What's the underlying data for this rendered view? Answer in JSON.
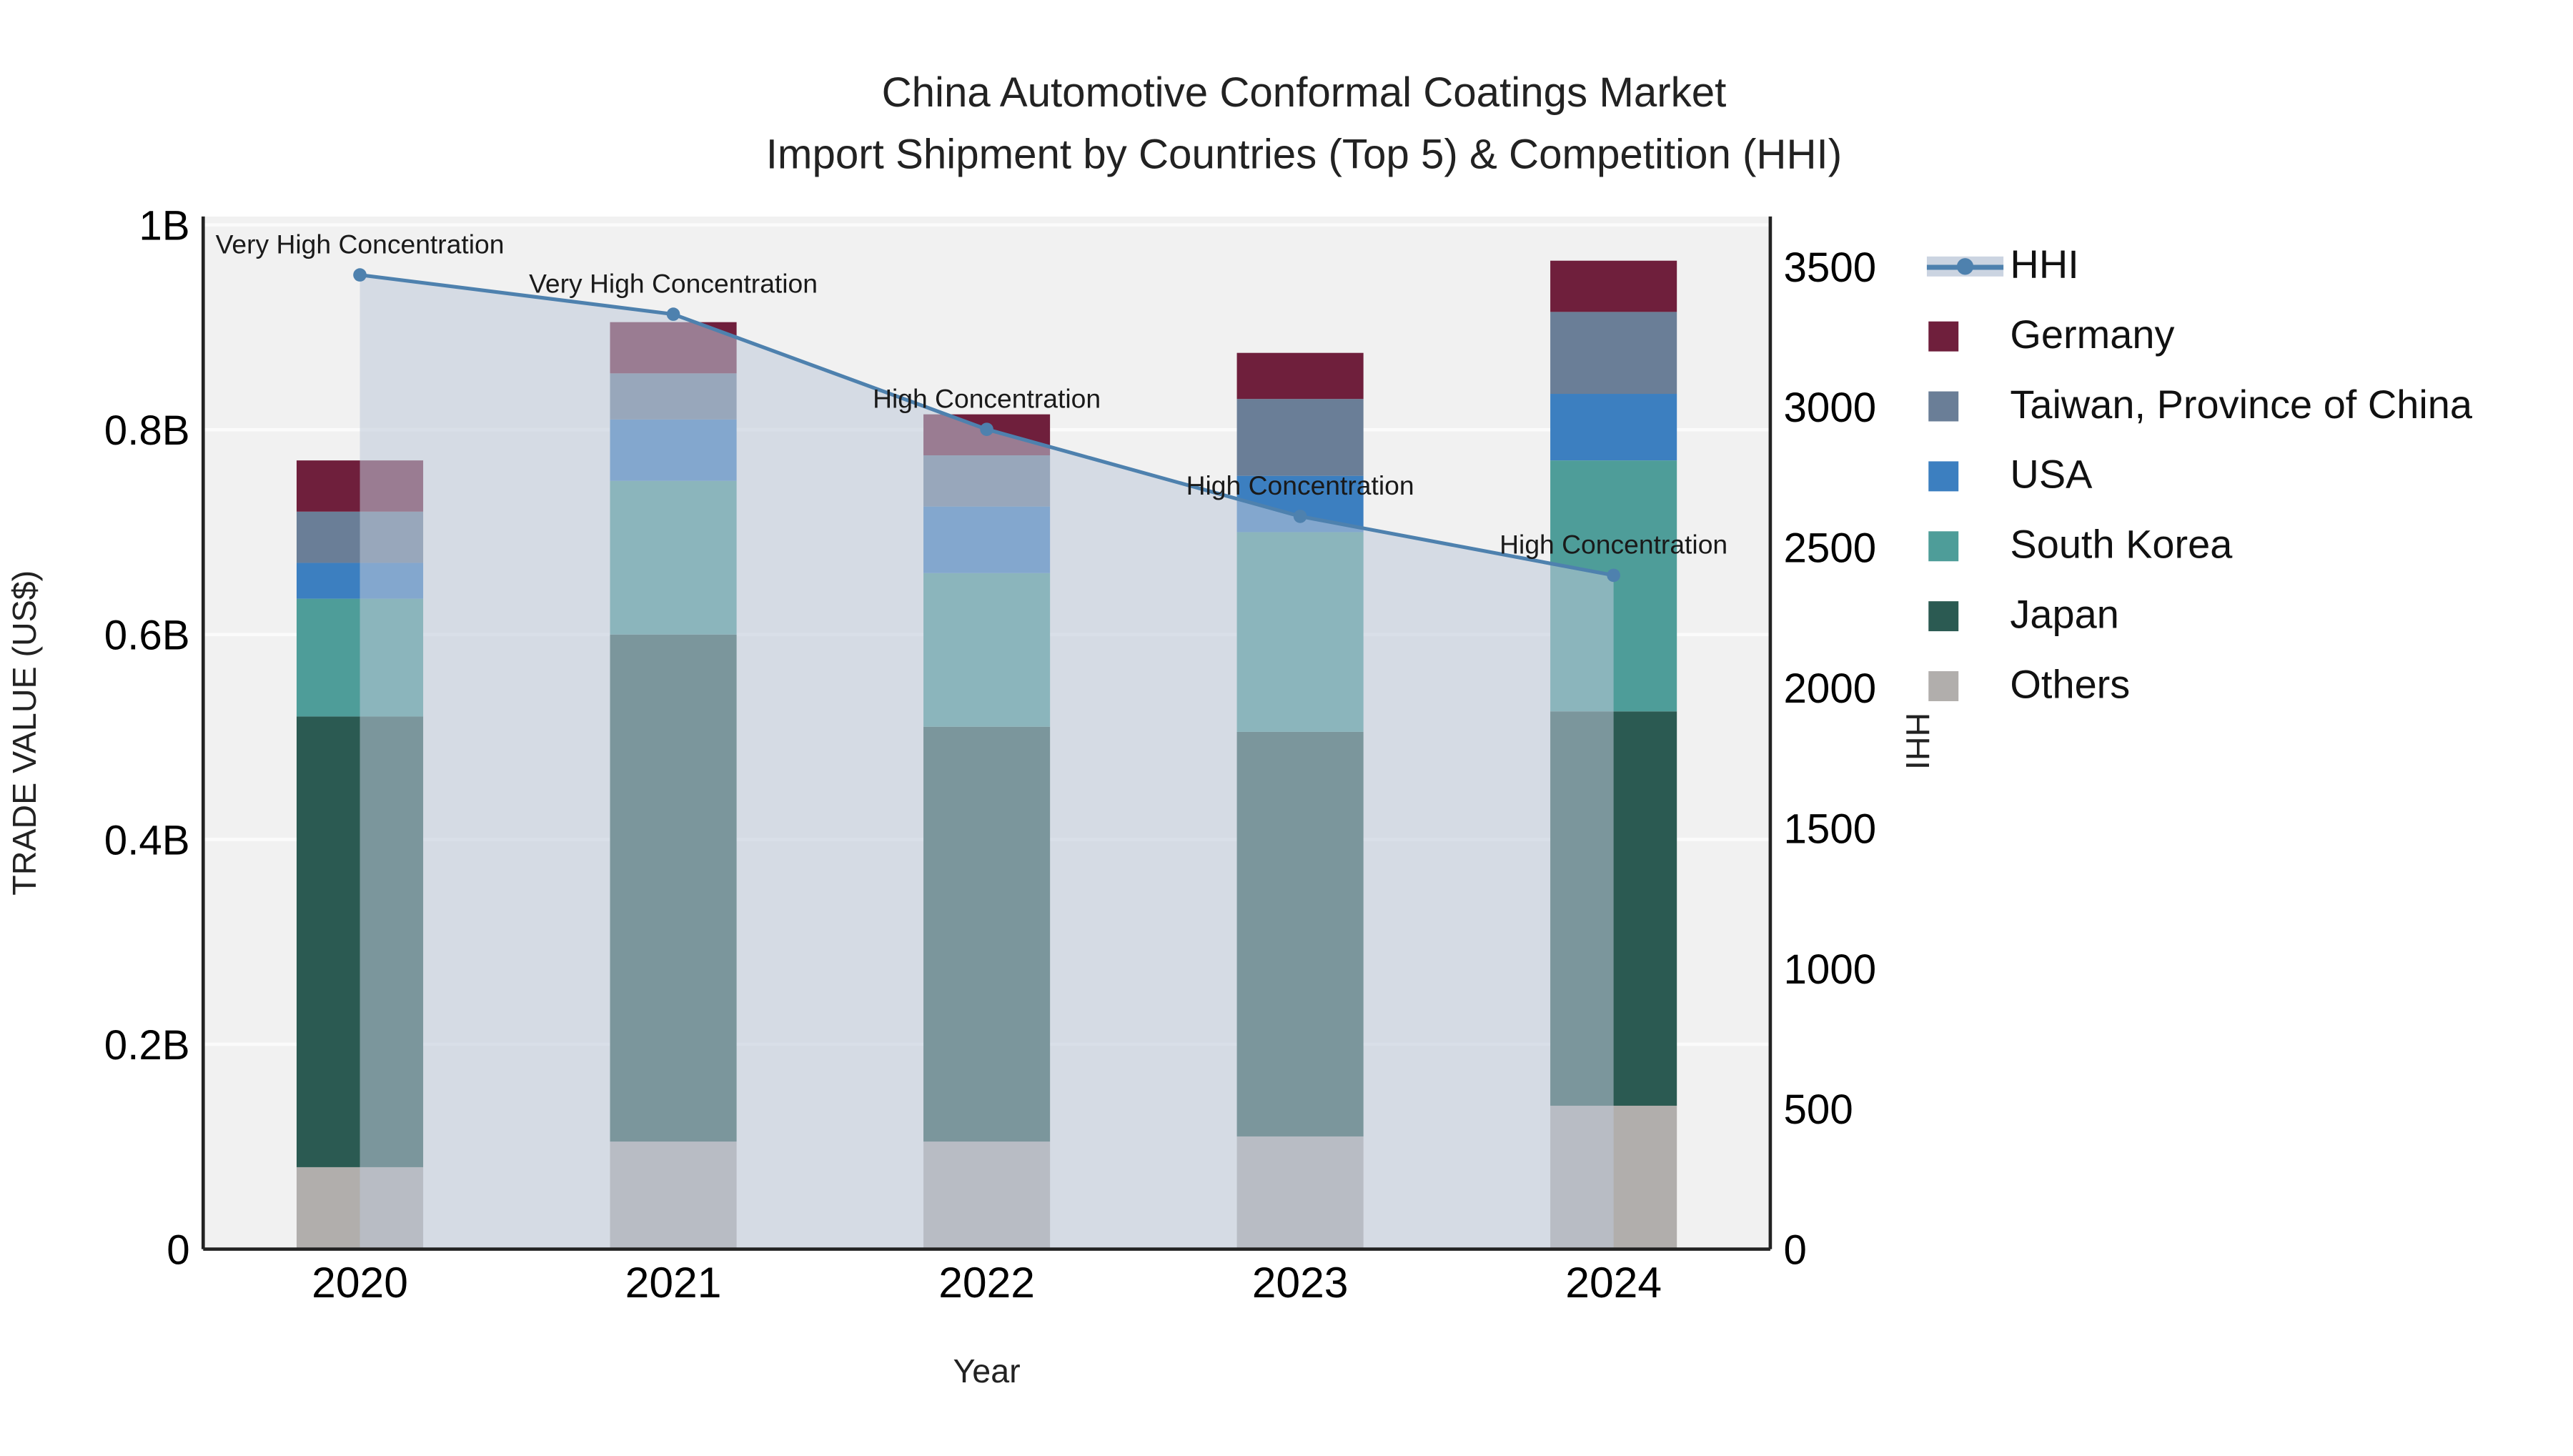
{
  "title": {
    "line1": "China Automotive Conformal Coatings Market",
    "line2": "Import Shipment by Countries (Top 5) & Competition (HHI)"
  },
  "axes": {
    "x_title": "Year",
    "y_left_title": "TRADE VALUE (US$)",
    "y_right_title": "HHI",
    "x_ticks": [
      "2020",
      "2021",
      "2022",
      "2023",
      "2024"
    ],
    "y_left_ticks": [
      {
        "label": "0",
        "value": 0
      },
      {
        "label": "0.2B",
        "value": 0.2
      },
      {
        "label": "0.4B",
        "value": 0.4
      },
      {
        "label": "0.6B",
        "value": 0.6
      },
      {
        "label": "0.8B",
        "value": 0.8
      },
      {
        "label": "1B",
        "value": 1.0
      }
    ],
    "y_right_ticks": [
      {
        "label": "0",
        "value": 0
      },
      {
        "label": "500",
        "value": 500
      },
      {
        "label": "1000",
        "value": 1000
      },
      {
        "label": "1500",
        "value": 1500
      },
      {
        "label": "2000",
        "value": 2000
      },
      {
        "label": "2500",
        "value": 2500
      },
      {
        "label": "3000",
        "value": 3000
      },
      {
        "label": "3500",
        "value": 3500
      }
    ]
  },
  "legend": {
    "items": [
      {
        "label": "HHI",
        "type": "line",
        "color": "#4E81AE"
      },
      {
        "label": "Germany",
        "type": "square",
        "color": "#6F1F3C"
      },
      {
        "label": "Taiwan, Province of China",
        "type": "square",
        "color": "#6A7E97"
      },
      {
        "label": "USA",
        "type": "square",
        "color": "#3C7FC0"
      },
      {
        "label": "South Korea",
        "type": "square",
        "color": "#4E9D99"
      },
      {
        "label": "Japan",
        "type": "square",
        "color": "#2B5A52"
      },
      {
        "label": "Others",
        "type": "square",
        "color": "#B1AEAC"
      }
    ]
  },
  "chart_data": {
    "type": "bar",
    "subtype": "stacked-bar-with-hhi-line",
    "title": "China Automotive Conformal Coatings Market — Import Shipment by Countries (Top 5) & Competition (HHI)",
    "xlabel": "Year",
    "ylabel_left": "TRADE VALUE (US$)",
    "ylabel_right": "HHI",
    "categories": [
      "2020",
      "2021",
      "2022",
      "2023",
      "2024"
    ],
    "value_unit": "billion US$",
    "y_left_range": [
      0,
      1.0
    ],
    "y_right_range": [
      0,
      3500
    ],
    "grid": true,
    "legend_position": "right",
    "plot_bg_color": "#F1F1F1",
    "series": [
      {
        "name": "Others",
        "color": "#B1AEAC",
        "values": [
          0.08,
          0.105,
          0.105,
          0.11,
          0.14
        ]
      },
      {
        "name": "Japan",
        "color": "#2B5A52",
        "values": [
          0.44,
          0.495,
          0.405,
          0.395,
          0.385
        ]
      },
      {
        "name": "South Korea",
        "color": "#4E9D99",
        "values": [
          0.115,
          0.15,
          0.15,
          0.195,
          0.245
        ]
      },
      {
        "name": "USA",
        "color": "#3C7FC0",
        "values": [
          0.035,
          0.06,
          0.065,
          0.055,
          0.065
        ]
      },
      {
        "name": "Taiwan, Province of China",
        "color": "#6A7E97",
        "values": [
          0.05,
          0.045,
          0.05,
          0.075,
          0.08
        ]
      },
      {
        "name": "Germany",
        "color": "#6F1F3C",
        "values": [
          0.05,
          0.05,
          0.04,
          0.045,
          0.05
        ]
      }
    ],
    "stack_totals": [
      0.77,
      0.905,
      0.815,
      0.875,
      0.965
    ],
    "line_series": {
      "name": "HHI",
      "axis": "right",
      "color": "#4E81AE",
      "area_fill": "rgba(190,200,216,0.55)",
      "values": [
        3470,
        3330,
        2920,
        2610,
        2400
      ]
    },
    "annotations": [
      {
        "category": "2020",
        "text": "Very High Concentration"
      },
      {
        "category": "2021",
        "text": "Very High Concentration"
      },
      {
        "category": "2022",
        "text": "High Concentration"
      },
      {
        "category": "2023",
        "text": "High Concentration"
      },
      {
        "category": "2024",
        "text": "High Concentration"
      }
    ]
  }
}
